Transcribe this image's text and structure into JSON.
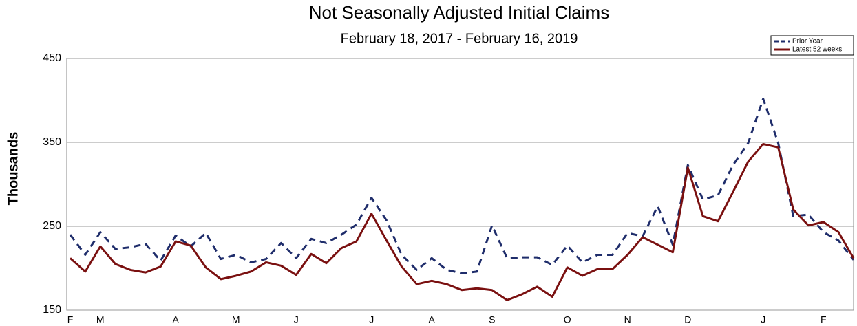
{
  "chart_data": {
    "type": "line",
    "title": "Not Seasonally Adjusted Initial Claims",
    "subtitle": "February 18, 2017  - February 16, 2019",
    "y_label": "Thousands",
    "categories": [
      "F",
      null,
      "M",
      null,
      null,
      null,
      null,
      "A",
      null,
      null,
      null,
      "M",
      null,
      null,
      null,
      "J",
      null,
      null,
      null,
      null,
      "J",
      null,
      null,
      null,
      "A",
      null,
      null,
      null,
      "S",
      null,
      null,
      null,
      null,
      "O",
      null,
      null,
      null,
      "N",
      null,
      null,
      null,
      "D",
      null,
      null,
      null,
      null,
      "J",
      null,
      null,
      null,
      "F",
      null,
      null
    ],
    "series": [
      {
        "name": "Prior Year",
        "color": "#1f2d6b",
        "dashed": true,
        "values": [
          240,
          216,
          243,
          223,
          225,
          229,
          209,
          239,
          226,
          242,
          211,
          216,
          207,
          211,
          230,
          212,
          235,
          230,
          240,
          252,
          284,
          257,
          216,
          198,
          212,
          198,
          194,
          196,
          251,
          212,
          213,
          213,
          204,
          227,
          207,
          216,
          216,
          242,
          238,
          274,
          228,
          323,
          282,
          287,
          323,
          349,
          402,
          349,
          262,
          264,
          243,
          233,
          210
        ]
      },
      {
        "name": "Latest 52 weeks",
        "color": "#7a1010",
        "dashed": false,
        "values": [
          212,
          196,
          226,
          205,
          198,
          195,
          202,
          232,
          227,
          201,
          187,
          191,
          196,
          207,
          203,
          192,
          217,
          206,
          224,
          232,
          265,
          233,
          202,
          181,
          185,
          181,
          174,
          176,
          174,
          162,
          169,
          178,
          166,
          201,
          191,
          199,
          199,
          216,
          237,
          228,
          219,
          320,
          262,
          256,
          291,
          327,
          348,
          344,
          270,
          251,
          255,
          243,
          212
        ]
      }
    ],
    "ylim": [
      150,
      450
    ],
    "yticks": [
      150,
      250,
      350,
      450
    ],
    "grid": true,
    "legend": "top-right"
  }
}
